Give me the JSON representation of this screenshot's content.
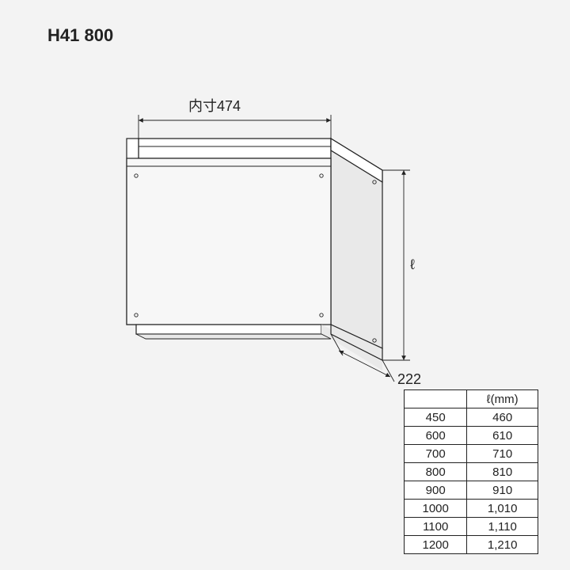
{
  "title": "H41 800",
  "dimensions": {
    "top_label": "内寸474",
    "side_label": "ℓ",
    "depth_label": "222"
  },
  "line_style": {
    "stroke": "#222222",
    "stroke_width": 1.2,
    "dim_stroke_width": 0.9,
    "hole_radius": 2.2,
    "background": "#f3f3f3",
    "panel_fill": "#ffffff",
    "shade_fill": "#e9e9e9",
    "front_fill": "#f7f7f7"
  },
  "table": {
    "columns": [
      "",
      "ℓ(mm)"
    ],
    "rows": [
      [
        "450",
        "460"
      ],
      [
        "600",
        "610"
      ],
      [
        "700",
        "710"
      ],
      [
        "800",
        "810"
      ],
      [
        "900",
        "910"
      ],
      [
        "1000",
        "1,010"
      ],
      [
        "1100",
        "1,110"
      ],
      [
        "1200",
        "1,210"
      ]
    ],
    "col_widths": [
      "50%",
      "50%"
    ]
  }
}
